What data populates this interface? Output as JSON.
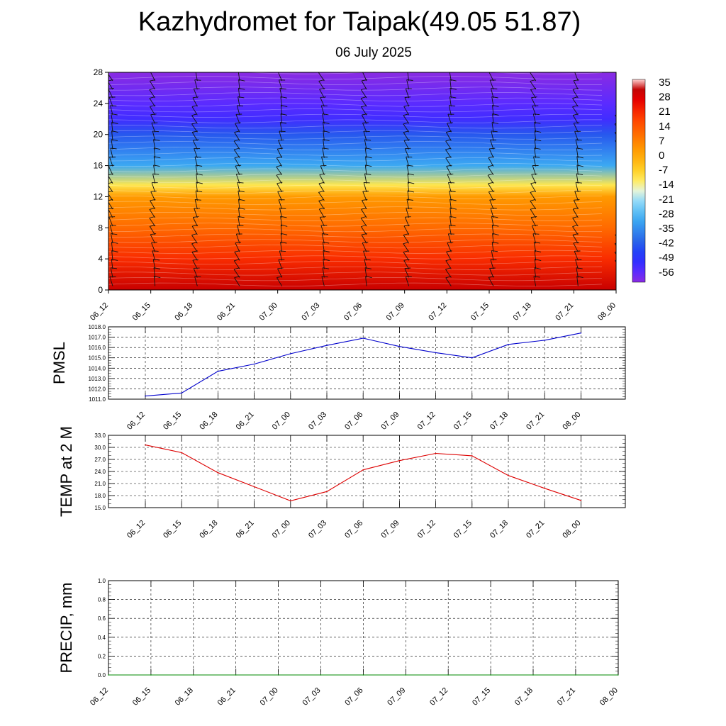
{
  "title": "Kazhydromet for Taipak(49.05 51.87)",
  "subtitle": "06 July 2025",
  "chart_data": [
    {
      "type": "heatmap",
      "name": "cross-section",
      "x_ticks": [
        "06_12",
        "06_15",
        "06_18",
        "06_21",
        "07_00",
        "07_03",
        "07_06",
        "07_09",
        "07_12",
        "07_15",
        "07_18",
        "07_21",
        "08_00"
      ],
      "y_ticks": [
        "0",
        "4",
        "8",
        "12",
        "16",
        "20",
        "24",
        "28"
      ],
      "ylim": [
        0,
        28
      ],
      "colorbar_labels": [
        "35",
        "28",
        "21",
        "14",
        "7",
        "0",
        "-7",
        "-14",
        "-21",
        "-28",
        "-35",
        "-42",
        "-49",
        "-56"
      ],
      "colorbar_range": [
        -60,
        38
      ],
      "temperature_by_level": [
        {
          "level": 0,
          "value": 32
        },
        {
          "level": 4,
          "value": 22
        },
        {
          "level": 8,
          "value": 12
        },
        {
          "level": 12,
          "value": 4
        },
        {
          "level": 13.5,
          "value": -10
        },
        {
          "level": 16,
          "value": -30
        },
        {
          "level": 20,
          "value": -42
        },
        {
          "level": 22,
          "value": -52
        },
        {
          "level": 24,
          "value": -55
        },
        {
          "level": 28,
          "value": -60
        }
      ],
      "wind_barbs": true
    },
    {
      "type": "line",
      "name": "pmsl",
      "ylabel": "PMSL",
      "color": "#0000cc",
      "x": [
        "06_12",
        "06_15",
        "06_18",
        "06_21",
        "07_00",
        "07_03",
        "07_06",
        "07_09",
        "07_12",
        "07_15",
        "07_18",
        "07_21",
        "08_00"
      ],
      "values": [
        1011.3,
        1011.6,
        1013.7,
        1014.4,
        1015.4,
        1016.2,
        1016.9,
        1016.1,
        1015.5,
        1015.0,
        1016.3,
        1016.7,
        1017.4
      ],
      "ylim": [
        1011.0,
        1018.0
      ],
      "y_ticks": [
        "1011.0",
        "1012.0",
        "1013.0",
        "1014.0",
        "1015.0",
        "1016.0",
        "1017.0",
        "1018.0"
      ]
    },
    {
      "type": "line",
      "name": "temp2m",
      "ylabel": "TEMP at 2 M",
      "color": "#dd0000",
      "x": [
        "06_12",
        "06_15",
        "06_18",
        "06_21",
        "07_00",
        "07_03",
        "07_06",
        "07_09",
        "07_12",
        "07_15",
        "07_18",
        "07_21",
        "08_00"
      ],
      "values": [
        30.6,
        28.7,
        23.7,
        20.2,
        16.7,
        19.0,
        24.4,
        26.7,
        28.5,
        27.9,
        23.0,
        19.8,
        16.8
      ],
      "ylim": [
        15.0,
        33.0
      ],
      "y_ticks": [
        "15.0",
        "18.0",
        "21.0",
        "24.0",
        "27.0",
        "30.0",
        "33.0"
      ]
    },
    {
      "type": "line",
      "name": "precip",
      "ylabel": "PRECIP, mm",
      "color": "#008800",
      "x": [
        "06_12",
        "06_15",
        "06_18",
        "06_21",
        "07_00",
        "07_03",
        "07_06",
        "07_09",
        "07_12",
        "07_15",
        "07_18",
        "07_21",
        "08_00"
      ],
      "values": [
        0,
        0,
        0,
        0,
        0,
        0,
        0,
        0,
        0,
        0,
        0,
        0,
        0
      ],
      "ylim": [
        0.0,
        1.0
      ],
      "y_ticks": [
        "0.0",
        "0.2",
        "0.4",
        "0.6",
        "0.8",
        "1.0"
      ]
    }
  ]
}
